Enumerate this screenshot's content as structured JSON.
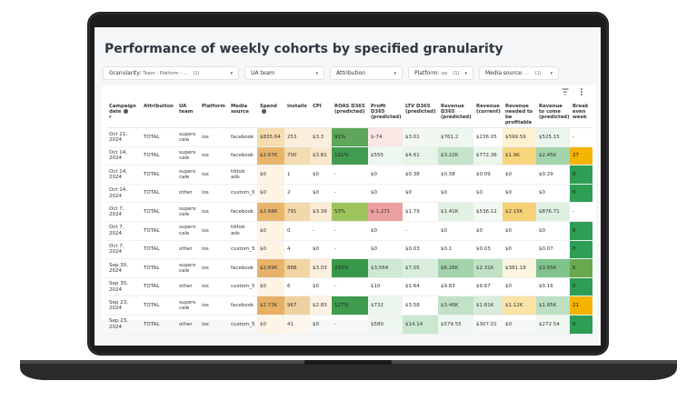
{
  "header": {
    "title": "Performance of weekly cohorts by specified granularity"
  },
  "filters": [
    {
      "label": "Granularity:",
      "value": "Team - Platform - ...",
      "count": "(1)"
    },
    {
      "label": "UA team"
    },
    {
      "label": "Attribution"
    },
    {
      "label": "Platform:",
      "value": "ios",
      "count": "(1)"
    },
    {
      "label": "Media source:",
      "value": "...",
      "count": "(1)"
    }
  ],
  "table": {
    "columns": [
      "Campaign date",
      "Attribution",
      "UA team",
      "Platform",
      "Media source",
      "Spend",
      "Installs",
      "CPI",
      "ROAS D365 (predicted)",
      "Profit D365 (predicted)",
      "LTV D365 (predicted)",
      "Revenue D365 (predicted)",
      "Revenue (current)",
      "Revenue needed to be profitable",
      "Revenue to come (predicted)",
      "Break even week"
    ],
    "rows": [
      [
        "Oct 21, 2024",
        "TOTAL",
        "supers cale",
        "ios",
        "facebook",
        "$835.64",
        "253",
        "$3.3",
        "91%",
        "$-74",
        "$3.01",
        "$761.2",
        "$236.05",
        "$599.59",
        "$525.15",
        "-"
      ],
      [
        "Oct 14, 2024",
        "TOTAL",
        "supers cale",
        "ios",
        "facebook",
        "$2.67K",
        "700",
        "$3.81",
        "121%",
        "$555",
        "$4.61",
        "$3.22K",
        "$772.36",
        "$1.9K",
        "$2.45K",
        "27"
      ],
      [
        "Oct 14, 2024",
        "TOTAL",
        "supers cale",
        "ios",
        "tiktok ads",
        "$0",
        "1",
        "$0",
        "-",
        "$0",
        "$0.38",
        "$0.38",
        "$0.09",
        "$0",
        "$0.29",
        "0"
      ],
      [
        "Oct 14, 2024",
        "TOTAL",
        "other",
        "ios",
        "custom_5",
        "$0",
        "2",
        "$0",
        "-",
        "$0",
        "$0",
        "$0",
        "$0",
        "$0",
        "$0",
        "0"
      ],
      [
        "Oct 7, 2024",
        "TOTAL",
        "supers cale",
        "ios",
        "facebook",
        "$2.68K",
        "791",
        "$3.39",
        "53%",
        "$-1,271",
        "$1.79",
        "$1.41K",
        "$536.12",
        "$2.15K",
        "$876.71",
        "-"
      ],
      [
        "Oct 7, 2024",
        "TOTAL",
        "supers cale",
        "ios",
        "tiktok ads",
        "$0",
        "0",
        "-",
        "-",
        "$0",
        "-",
        "$0",
        "$0",
        "$0",
        "$0",
        "0"
      ],
      [
        "Oct 7, 2024",
        "TOTAL",
        "other",
        "ios",
        "custom_5",
        "$0",
        "4",
        "$0",
        "-",
        "$0",
        "$0.03",
        "$0.1",
        "$0.03",
        "$0",
        "$0.07",
        "0"
      ],
      [
        "Sep 30, 2024",
        "TOTAL",
        "supers cale",
        "ios",
        "facebook",
        "$2.69K",
        "888",
        "$3.03",
        "232%",
        "$3,564",
        "$7.05",
        "$6.26K",
        "$2.31K",
        "$381.18",
        "$3.95K",
        "5"
      ],
      [
        "Sep 30, 2024",
        "TOTAL",
        "other",
        "ios",
        "custom_5",
        "$0",
        "6",
        "$0",
        "-",
        "$10",
        "$1.64",
        "$9.83",
        "$9.67",
        "$0",
        "$0.16",
        "0"
      ],
      [
        "Sep 23, 2024",
        "TOTAL",
        "supers cale",
        "ios",
        "facebook",
        "$2.73K",
        "967",
        "$2.83",
        "127%",
        "$732",
        "$3.58",
        "$3.46K",
        "$1.61K",
        "$1.12K",
        "$1.85K",
        "21"
      ],
      [
        "Sep 23, 2024",
        "TOTAL",
        "other",
        "ios",
        "custom_5",
        "$0",
        "41",
        "$0",
        "-",
        "$580",
        "$14.14",
        "$579.55",
        "$307.01",
        "$0",
        "$272.54",
        "0"
      ]
    ]
  }
}
